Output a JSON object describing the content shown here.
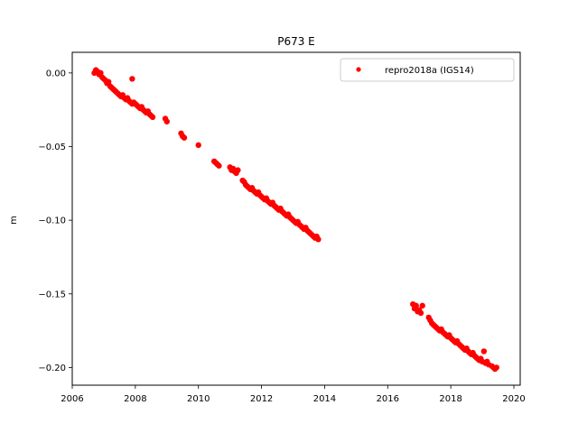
{
  "chart_data": {
    "type": "scatter",
    "title": "P673 E",
    "xlabel": "",
    "ylabel": "m",
    "xlim": [
      2006,
      2020.2
    ],
    "ylim": [
      -0.212,
      0.014
    ],
    "xticks": [
      2006,
      2008,
      2010,
      2012,
      2014,
      2016,
      2018,
      2020
    ],
    "yticks": [
      0.0,
      -0.05,
      -0.1,
      -0.15,
      -0.2
    ],
    "xtick_labels": [
      "2006",
      "2008",
      "2010",
      "2012",
      "2014",
      "2016",
      "2018",
      "2020"
    ],
    "ytick_labels": [
      "0.00",
      "−0.05",
      "−0.10",
      "−0.15",
      "−0.20"
    ],
    "grid": false,
    "legend_position": "top-right",
    "series": [
      {
        "name": "repro2018a (IGS14)",
        "color": "#ff0000",
        "marker": "circle",
        "x": [
          2006.7,
          2006.75,
          2006.8,
          2006.85,
          2006.9,
          2006.95,
          2007.0,
          2007.05,
          2007.1,
          2007.15,
          2007.2,
          2007.25,
          2007.3,
          2007.35,
          2007.4,
          2007.45,
          2007.5,
          2007.55,
          2007.6,
          2007.65,
          2007.7,
          2007.75,
          2007.8,
          2007.85,
          2007.9,
          2007.95,
          2008.0,
          2008.05,
          2008.1,
          2008.15,
          2008.2,
          2008.25,
          2008.3,
          2008.35,
          2008.4,
          2008.45,
          2008.5,
          2008.55,
          2007.9,
          2008.95,
          2009.0,
          2009.45,
          2009.5,
          2009.55,
          2010.0,
          2010.5,
          2010.55,
          2010.6,
          2010.65,
          2011.0,
          2011.05,
          2011.1,
          2011.15,
          2011.2,
          2011.25,
          2011.4,
          2011.45,
          2011.5,
          2011.55,
          2011.6,
          2011.65,
          2011.7,
          2011.75,
          2011.8,
          2011.85,
          2011.9,
          2011.95,
          2012.0,
          2012.05,
          2012.1,
          2012.15,
          2012.2,
          2012.25,
          2012.3,
          2012.35,
          2012.4,
          2012.45,
          2012.5,
          2012.55,
          2012.6,
          2012.65,
          2012.7,
          2012.75,
          2012.8,
          2012.85,
          2012.9,
          2012.95,
          2013.0,
          2013.05,
          2013.1,
          2013.15,
          2013.2,
          2013.25,
          2013.3,
          2013.35,
          2013.4,
          2013.45,
          2013.5,
          2013.55,
          2013.6,
          2013.65,
          2013.7,
          2013.75,
          2013.8,
          2016.8,
          2016.85,
          2016.9,
          2016.95,
          2017.0,
          2017.05,
          2017.1,
          2017.3,
          2017.35,
          2017.4,
          2017.45,
          2017.5,
          2017.55,
          2017.6,
          2017.65,
          2017.7,
          2017.75,
          2017.8,
          2017.85,
          2017.9,
          2017.95,
          2018.0,
          2018.05,
          2018.1,
          2018.15,
          2018.2,
          2018.25,
          2018.3,
          2018.35,
          2018.4,
          2018.45,
          2018.5,
          2018.55,
          2018.6,
          2018.65,
          2018.7,
          2018.75,
          2018.8,
          2018.85,
          2018.9,
          2018.95,
          2019.0,
          2019.05,
          2019.1,
          2019.15,
          2019.2,
          2019.3,
          2019.35,
          2019.4,
          2019.45
        ],
        "y": [
          0.0,
          0.002,
          0.001,
          -0.001,
          0.0,
          -0.003,
          -0.004,
          -0.005,
          -0.007,
          -0.006,
          -0.009,
          -0.01,
          -0.011,
          -0.012,
          -0.013,
          -0.014,
          -0.015,
          -0.016,
          -0.015,
          -0.017,
          -0.018,
          -0.017,
          -0.019,
          -0.02,
          -0.021,
          -0.02,
          -0.021,
          -0.022,
          -0.023,
          -0.024,
          -0.023,
          -0.025,
          -0.026,
          -0.027,
          -0.026,
          -0.028,
          -0.029,
          -0.03,
          -0.004,
          -0.031,
          -0.033,
          -0.041,
          -0.043,
          -0.044,
          -0.049,
          -0.06,
          -0.061,
          -0.062,
          -0.063,
          -0.064,
          -0.066,
          -0.065,
          -0.067,
          -0.068,
          -0.066,
          -0.073,
          -0.074,
          -0.076,
          -0.077,
          -0.078,
          -0.079,
          -0.078,
          -0.08,
          -0.081,
          -0.082,
          -0.081,
          -0.083,
          -0.084,
          -0.085,
          -0.086,
          -0.085,
          -0.087,
          -0.088,
          -0.089,
          -0.088,
          -0.09,
          -0.091,
          -0.092,
          -0.093,
          -0.092,
          -0.094,
          -0.095,
          -0.096,
          -0.097,
          -0.096,
          -0.098,
          -0.099,
          -0.1,
          -0.101,
          -0.102,
          -0.101,
          -0.103,
          -0.104,
          -0.105,
          -0.106,
          -0.105,
          -0.107,
          -0.108,
          -0.109,
          -0.11,
          -0.111,
          -0.112,
          -0.111,
          -0.113,
          -0.157,
          -0.16,
          -0.158,
          -0.162,
          -0.161,
          -0.163,
          -0.158,
          -0.166,
          -0.168,
          -0.17,
          -0.171,
          -0.172,
          -0.173,
          -0.174,
          -0.175,
          -0.174,
          -0.176,
          -0.177,
          -0.178,
          -0.179,
          -0.178,
          -0.18,
          -0.181,
          -0.182,
          -0.183,
          -0.182,
          -0.184,
          -0.185,
          -0.186,
          -0.187,
          -0.188,
          -0.187,
          -0.189,
          -0.19,
          -0.191,
          -0.19,
          -0.192,
          -0.193,
          -0.194,
          -0.195,
          -0.194,
          -0.196,
          -0.189,
          -0.197,
          -0.196,
          -0.198,
          -0.199,
          -0.2,
          -0.201,
          -0.2
        ]
      }
    ]
  }
}
